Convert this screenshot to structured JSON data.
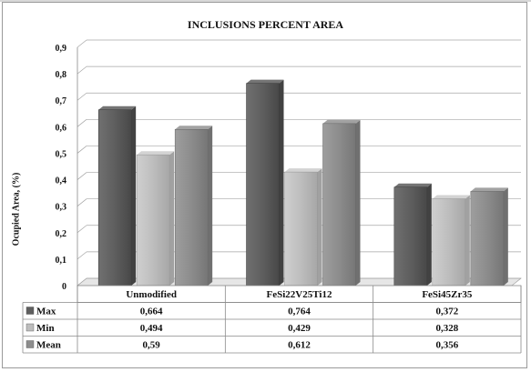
{
  "chart_data": {
    "type": "bar",
    "title": "INCLUSIONS PERCENT AREA",
    "xlabel": "",
    "ylabel": "Ocupied Area, (%)",
    "ylim": [
      0,
      0.9
    ],
    "yticks": [
      "0",
      "0,1",
      "0,2",
      "0,3",
      "0,4",
      "0,5",
      "0,6",
      "0,7",
      "0,8",
      "0,9"
    ],
    "grid": true,
    "legend": "table-below",
    "categories": [
      "Unmodified",
      "FeSi22V25Ti12",
      "FeSi45Zr35"
    ],
    "series": [
      {
        "name": "Max",
        "values": [
          0.664,
          0.764,
          0.372
        ],
        "labels": [
          "0,664",
          "0,764",
          "0,372"
        ],
        "color": "#5e5e5e"
      },
      {
        "name": "Min",
        "values": [
          0.494,
          0.429,
          0.328
        ],
        "labels": [
          "0,494",
          "0,429",
          "0,328"
        ],
        "color": "#bdbdbd"
      },
      {
        "name": "Mean",
        "values": [
          0.59,
          0.612,
          0.356
        ],
        "labels": [
          "0,59",
          "0,612",
          "0,356"
        ],
        "color": "#8c8c8c"
      }
    ]
  }
}
